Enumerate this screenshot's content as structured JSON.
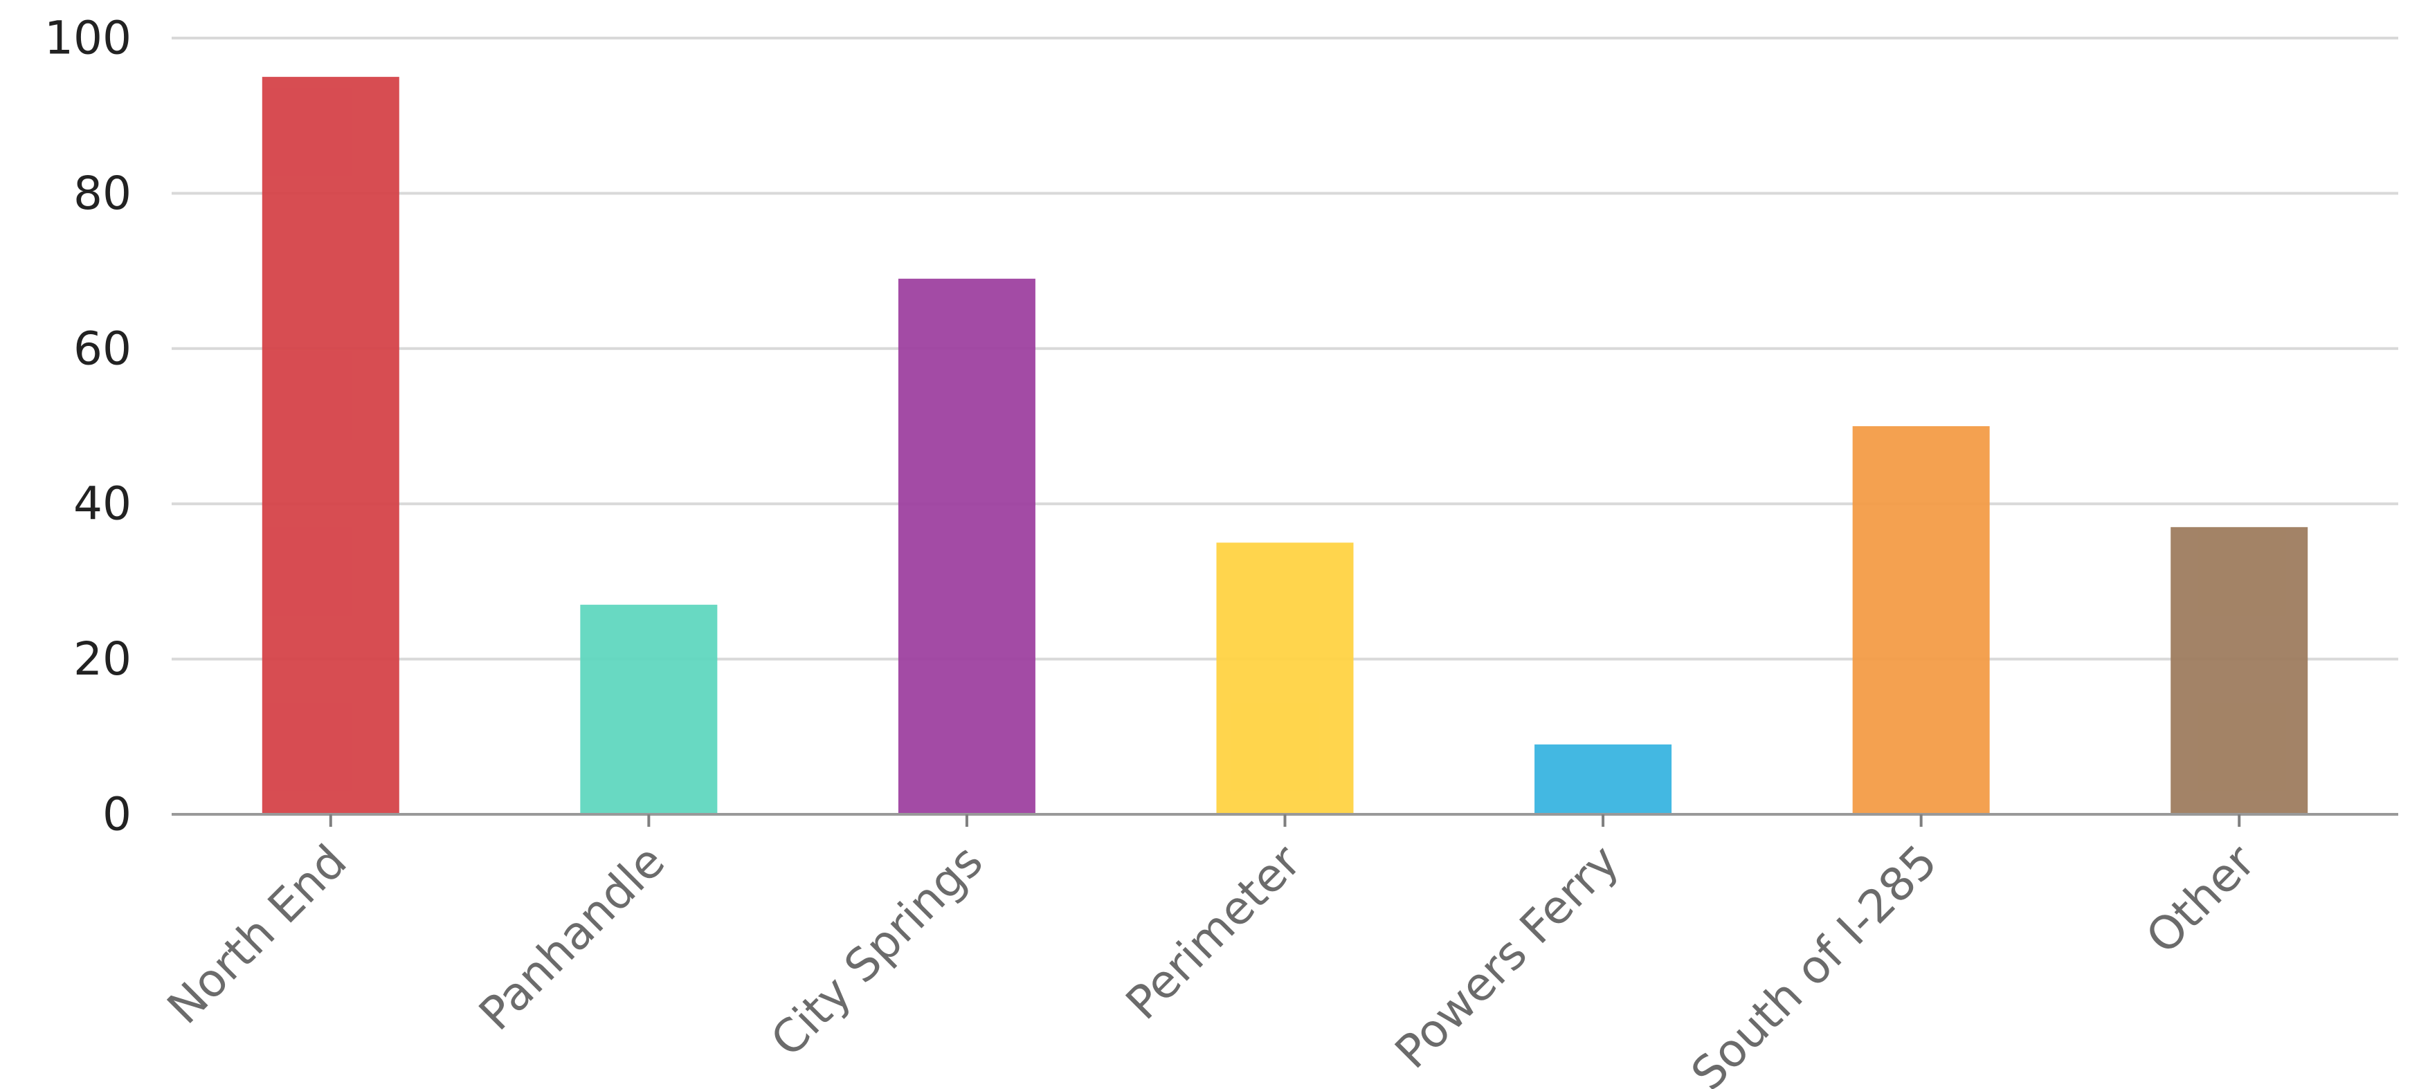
{
  "chart_data": {
    "type": "bar",
    "categories": [
      "North End",
      "Panhandle",
      "City Springs",
      "Perimeter",
      "Powers Ferry",
      "South of I-285",
      "Other"
    ],
    "values": [
      95,
      27,
      69,
      35,
      9,
      50,
      37
    ],
    "colors": [
      "#d43f45",
      "#5dd6bd",
      "#9c3d9e",
      "#ffd23f",
      "#35b3e0",
      "#f39a43",
      "#9c7a5b"
    ],
    "ylim": [
      0,
      100
    ],
    "yticks": [
      0,
      20,
      40,
      60,
      80,
      100
    ],
    "ytick_labels": [
      "0",
      "20",
      "40",
      "60",
      "80",
      "100"
    ],
    "grid": true,
    "legend": "none",
    "title": "",
    "xlabel": "",
    "ylabel": ""
  }
}
